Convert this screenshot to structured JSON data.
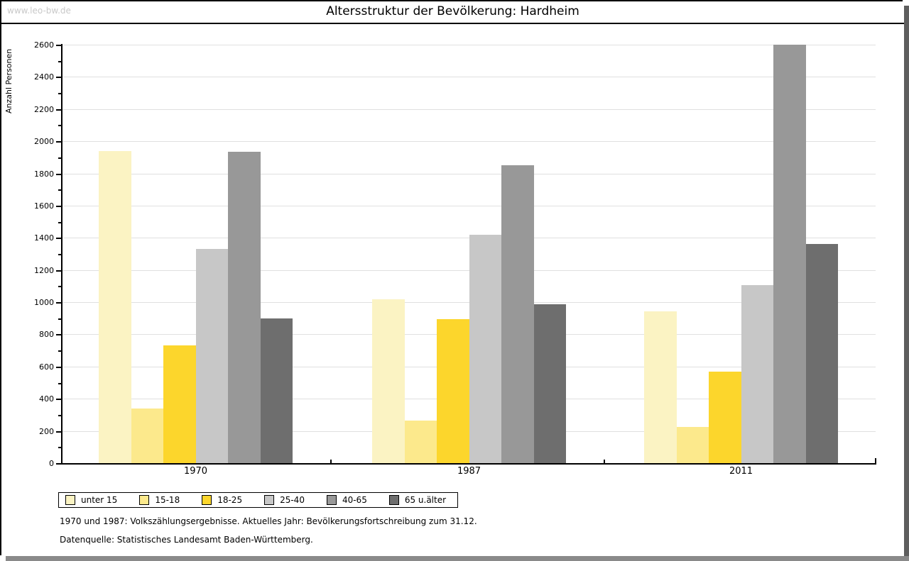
{
  "page": {
    "watermark": "www.leo-bw.de",
    "title": "Altersstruktur der Bevölkerung: Hardheim",
    "footnote_line1": "1970 und 1987: Volkszählungsergebnisse. Aktuelles Jahr: Bevölkerungsfortschreibung zum 31.12.",
    "footnote_line2": "Datenquelle: Statistisches Landesamt Baden-Württemberg."
  },
  "chart_data": {
    "type": "bar",
    "title": "Altersstruktur der Bevölkerung: Hardheim",
    "ylabel": "Anzahl Personen",
    "xlabel": "",
    "categories": [
      "1970",
      "1987",
      "2011"
    ],
    "series": [
      {
        "name": "unter 15",
        "color": "#fbf3c3",
        "values": [
          1940,
          1020,
          945
        ]
      },
      {
        "name": "15-18",
        "color": "#fce98c",
        "values": [
          340,
          265,
          225
        ]
      },
      {
        "name": "18-25",
        "color": "#fcd62c",
        "values": [
          730,
          895,
          570
        ]
      },
      {
        "name": "25-40",
        "color": "#c7c7c7",
        "values": [
          1330,
          1420,
          1105
        ]
      },
      {
        "name": "40-65",
        "color": "#989898",
        "values": [
          1935,
          1850,
          2600
        ]
      },
      {
        "name": "65 u.älter",
        "color": "#6e6e6e",
        "values": [
          900,
          985,
          1360
        ]
      }
    ],
    "ylim": [
      0,
      2600
    ],
    "yticks": [
      0,
      200,
      400,
      600,
      800,
      1000,
      1200,
      1400,
      1600,
      1800,
      2000,
      2200,
      2400,
      2600
    ],
    "minor_tick_step": 100,
    "grid": true,
    "legend_position": "bottom-left"
  }
}
